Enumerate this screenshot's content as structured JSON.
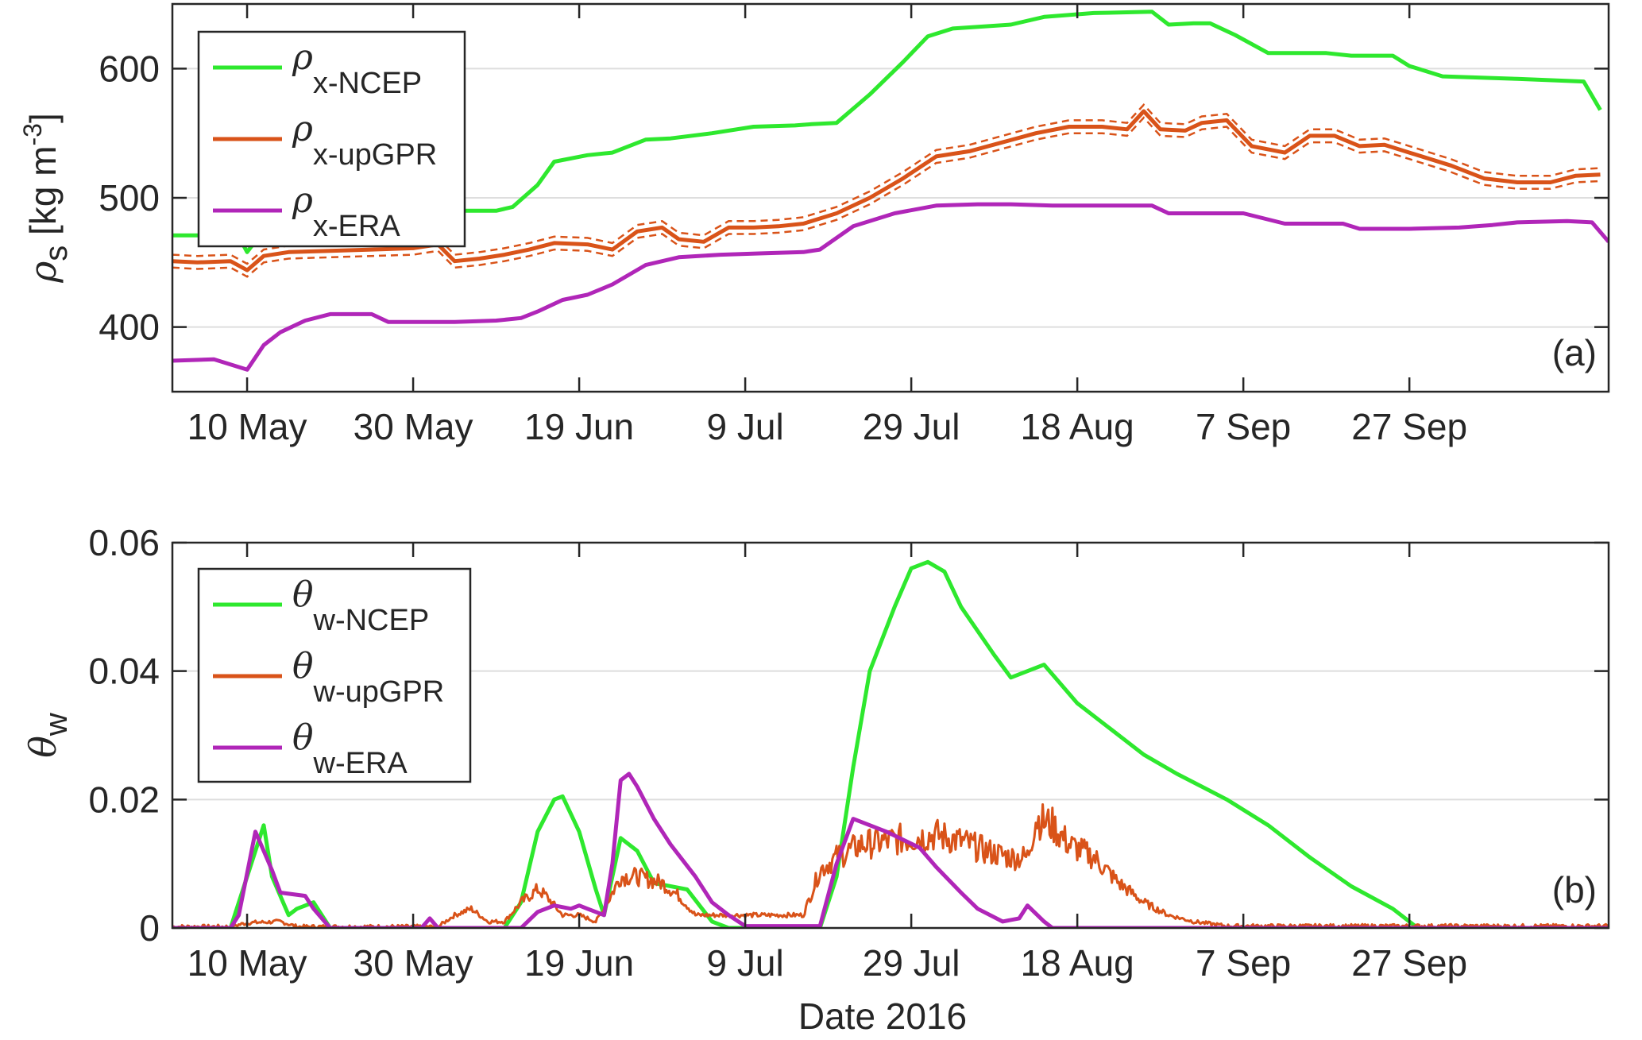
{
  "figure": {
    "xlabel": "Date 2016"
  },
  "chart_data": [
    {
      "type": "line",
      "panel": "(a)",
      "ylabel_symbol": "ρ",
      "ylabel_subscript": "s",
      "ylabel_units": "[kg m",
      "ylabel_exponent": "-3",
      "ylabel_close": "]",
      "xlim": [
        "2016-05-01",
        "2016-10-21"
      ],
      "ylim": [
        350,
        650
      ],
      "x_ticks": [
        "2016-05-10",
        "2016-05-30",
        "2016-06-19",
        "2016-07-09",
        "2016-07-29",
        "2016-08-18",
        "2016-09-07",
        "2016-09-27"
      ],
      "x_tick_labels": [
        "10 May",
        "30 May",
        "19 Jun",
        "9 Jul",
        "29 Jul",
        "18 Aug",
        "7 Sep",
        "27 Sep"
      ],
      "y_ticks": [
        400,
        500,
        600
      ],
      "y_tick_labels": [
        "400",
        "500",
        "600"
      ],
      "grid": "horizontal",
      "legend_position": "top-left",
      "series": [
        {
          "name": "ρx-NCEP",
          "symbol": "ρ",
          "subscript": "x-NCEP",
          "color": "#2ee82e",
          "x": [
            "2016-05-01",
            "2016-05-07",
            "2016-05-09",
            "2016-05-10",
            "2016-05-12",
            "2016-05-14",
            "2016-05-17",
            "2016-05-22",
            "2016-05-25",
            "2016-05-30",
            "2016-06-05",
            "2016-06-09",
            "2016-06-11",
            "2016-06-14",
            "2016-06-16",
            "2016-06-20",
            "2016-06-23",
            "2016-06-27",
            "2016-06-30",
            "2016-07-05",
            "2016-07-10",
            "2016-07-15",
            "2016-07-17",
            "2016-07-20",
            "2016-07-24",
            "2016-07-28",
            "2016-07-31",
            "2016-08-03",
            "2016-08-10",
            "2016-08-14",
            "2016-08-20",
            "2016-08-27",
            "2016-08-29",
            "2016-09-01",
            "2016-09-03",
            "2016-09-06",
            "2016-09-10",
            "2016-09-17",
            "2016-09-20",
            "2016-09-25",
            "2016-09-27",
            "2016-10-01",
            "2016-10-10",
            "2016-10-18",
            "2016-10-20"
          ],
          "values": [
            471,
            471,
            470,
            458,
            475,
            487,
            494,
            496,
            491,
            491,
            490,
            490,
            493,
            510,
            528,
            533,
            535,
            545,
            546,
            550,
            555,
            556,
            557,
            558,
            580,
            605,
            625,
            631,
            634,
            640,
            643,
            644,
            634,
            635,
            635,
            626,
            612,
            612,
            610,
            610,
            602,
            594,
            592,
            590,
            568
          ]
        },
        {
          "name": "ρx-upGPR",
          "symbol": "ρ",
          "subscript": "x-upGPR",
          "color": "#d95319",
          "band": 5,
          "x": [
            "2016-05-01",
            "2016-05-04",
            "2016-05-08",
            "2016-05-10",
            "2016-05-12",
            "2016-05-15",
            "2016-05-20",
            "2016-05-25",
            "2016-05-30",
            "2016-06-02",
            "2016-06-04",
            "2016-06-07",
            "2016-06-10",
            "2016-06-13",
            "2016-06-16",
            "2016-06-20",
            "2016-06-23",
            "2016-06-26",
            "2016-06-29",
            "2016-07-01",
            "2016-07-04",
            "2016-07-07",
            "2016-07-10",
            "2016-07-13",
            "2016-07-16",
            "2016-07-20",
            "2016-07-24",
            "2016-07-28",
            "2016-08-01",
            "2016-08-05",
            "2016-08-09",
            "2016-08-13",
            "2016-08-17",
            "2016-08-21",
            "2016-08-24",
            "2016-08-26",
            "2016-08-28",
            "2016-08-31",
            "2016-09-02",
            "2016-09-05",
            "2016-09-08",
            "2016-09-12",
            "2016-09-15",
            "2016-09-18",
            "2016-09-21",
            "2016-09-24",
            "2016-09-27",
            "2016-10-02",
            "2016-10-06",
            "2016-10-10",
            "2016-10-14",
            "2016-10-17",
            "2016-10-20"
          ],
          "values": [
            451,
            450,
            451,
            444,
            455,
            458,
            459,
            460,
            461,
            464,
            451,
            453,
            456,
            460,
            465,
            464,
            460,
            474,
            477,
            468,
            466,
            477,
            477,
            478,
            480,
            488,
            500,
            515,
            532,
            536,
            543,
            550,
            555,
            555,
            553,
            567,
            553,
            552,
            558,
            560,
            540,
            535,
            548,
            548,
            540,
            541,
            535,
            525,
            515,
            512,
            512,
            517,
            518
          ]
        },
        {
          "name": "ρx-ERA",
          "symbol": "ρ",
          "subscript": "x-ERA",
          "color": "#b026b8",
          "x": [
            "2016-05-01",
            "2016-05-06",
            "2016-05-10",
            "2016-05-12",
            "2016-05-14",
            "2016-05-17",
            "2016-05-20",
            "2016-05-25",
            "2016-05-27",
            "2016-05-30",
            "2016-06-04",
            "2016-06-09",
            "2016-06-12",
            "2016-06-14",
            "2016-06-17",
            "2016-06-20",
            "2016-06-23",
            "2016-06-27",
            "2016-07-01",
            "2016-07-06",
            "2016-07-11",
            "2016-07-16",
            "2016-07-18",
            "2016-07-22",
            "2016-07-27",
            "2016-08-01",
            "2016-08-06",
            "2016-08-10",
            "2016-08-15",
            "2016-08-20",
            "2016-08-27",
            "2016-08-29",
            "2016-09-05",
            "2016-09-07",
            "2016-09-12",
            "2016-09-19",
            "2016-09-21",
            "2016-09-27",
            "2016-10-03",
            "2016-10-07",
            "2016-10-10",
            "2016-10-16",
            "2016-10-19",
            "2016-10-21"
          ],
          "values": [
            374,
            375,
            367,
            386,
            396,
            405,
            410,
            410,
            404,
            404,
            404,
            405,
            407,
            412,
            421,
            425,
            433,
            448,
            454,
            456,
            457,
            458,
            460,
            478,
            488,
            494,
            495,
            495,
            494,
            494,
            494,
            488,
            488,
            488,
            480,
            480,
            476,
            476,
            477,
            479,
            481,
            482,
            481,
            466
          ]
        }
      ]
    },
    {
      "type": "line",
      "panel": "(b)",
      "ylabel_symbol": "θ",
      "ylabel_subscript": "w",
      "xlabel": "Date 2016",
      "xlim": [
        "2016-05-01",
        "2016-10-21"
      ],
      "ylim": [
        0,
        0.06
      ],
      "x_ticks": [
        "2016-05-10",
        "2016-05-30",
        "2016-06-19",
        "2016-07-09",
        "2016-07-29",
        "2016-08-18",
        "2016-09-07",
        "2016-09-27"
      ],
      "x_tick_labels": [
        "10 May",
        "30 May",
        "19 Jun",
        "9 Jul",
        "29 Jul",
        "18 Aug",
        "7 Sep",
        "27 Sep"
      ],
      "y_ticks": [
        0,
        0.02,
        0.04,
        0.06
      ],
      "y_tick_labels": [
        "0",
        "0.02",
        "0.04",
        "0.06"
      ],
      "grid": "horizontal",
      "legend_position": "top-left",
      "series": [
        {
          "name": "θw-NCEP",
          "symbol": "θ",
          "subscript": "w-NCEP",
          "color": "#2ee82e",
          "x": [
            "2016-05-01",
            "2016-05-08",
            "2016-05-10",
            "2016-05-12",
            "2016-05-13",
            "2016-05-15",
            "2016-05-16",
            "2016-05-18",
            "2016-05-20",
            "2016-06-10",
            "2016-06-12",
            "2016-06-14",
            "2016-06-16",
            "2016-06-17",
            "2016-06-19",
            "2016-06-21",
            "2016-06-22",
            "2016-06-24",
            "2016-06-26",
            "2016-06-28",
            "2016-07-02",
            "2016-07-05",
            "2016-07-07",
            "2016-07-18",
            "2016-07-20",
            "2016-07-22",
            "2016-07-24",
            "2016-07-27",
            "2016-07-29",
            "2016-07-31",
            "2016-08-02",
            "2016-08-04",
            "2016-08-08",
            "2016-08-10",
            "2016-08-12",
            "2016-08-14",
            "2016-08-18",
            "2016-08-22",
            "2016-08-26",
            "2016-08-30",
            "2016-09-05",
            "2016-09-10",
            "2016-09-15",
            "2016-09-20",
            "2016-09-25",
            "2016-09-28",
            "2016-10-21"
          ],
          "values": [
            0,
            0,
            0.008,
            0.016,
            0.008,
            0.002,
            0.003,
            0.004,
            0,
            0,
            0.004,
            0.015,
            0.02,
            0.0205,
            0.015,
            0.006,
            0.002,
            0.014,
            0.012,
            0.007,
            0.006,
            0.001,
            0,
            0,
            0.008,
            0.025,
            0.04,
            0.05,
            0.056,
            0.057,
            0.0555,
            0.05,
            0.0425,
            0.039,
            0.04,
            0.041,
            0.035,
            0.031,
            0.027,
            0.024,
            0.02,
            0.016,
            0.011,
            0.0065,
            0.003,
            0,
            0
          ]
        },
        {
          "name": "θw-upGPR",
          "symbol": "θ",
          "subscript": "w-upGPR",
          "color": "#d95319",
          "noise": true,
          "x": [
            "2016-05-01",
            "2016-05-08",
            "2016-05-10",
            "2016-05-14",
            "2016-05-16",
            "2016-06-02",
            "2016-06-04",
            "2016-06-06",
            "2016-06-08",
            "2016-06-10",
            "2016-06-12",
            "2016-06-14",
            "2016-06-15",
            "2016-06-17",
            "2016-06-19",
            "2016-06-21",
            "2016-06-22",
            "2016-06-24",
            "2016-06-26",
            "2016-06-29",
            "2016-07-01",
            "2016-07-03",
            "2016-07-07",
            "2016-07-11",
            "2016-07-16",
            "2016-07-18",
            "2016-07-20",
            "2016-07-23",
            "2016-07-26",
            "2016-07-29",
            "2016-08-01",
            "2016-08-04",
            "2016-08-07",
            "2016-08-10",
            "2016-08-12",
            "2016-08-13",
            "2016-08-15",
            "2016-08-17",
            "2016-08-20",
            "2016-08-23",
            "2016-08-26",
            "2016-08-29",
            "2016-09-01",
            "2016-09-05",
            "2016-10-21"
          ],
          "values": [
            0.0002,
            0.0002,
            0.0008,
            0.001,
            0.0002,
            0.0002,
            0.002,
            0.003,
            0.001,
            0.001,
            0.004,
            0.006,
            0.005,
            0.002,
            0.002,
            0.001,
            0.003,
            0.008,
            0.008,
            0.007,
            0.005,
            0.002,
            0.002,
            0.002,
            0.002,
            0.009,
            0.011,
            0.013,
            0.0135,
            0.014,
            0.0145,
            0.0135,
            0.012,
            0.011,
            0.011,
            0.017,
            0.016,
            0.013,
            0.011,
            0.007,
            0.004,
            0.002,
            0.001,
            0.0003,
            0.0003
          ]
        },
        {
          "name": "θw-ERA",
          "symbol": "θ",
          "subscript": "w-ERA",
          "color": "#b026b8",
          "x": [
            "2016-05-01",
            "2016-05-08",
            "2016-05-09",
            "2016-05-11",
            "2016-05-12",
            "2016-05-13",
            "2016-05-14",
            "2016-05-17",
            "2016-05-18",
            "2016-05-20",
            "2016-05-31",
            "2016-06-01",
            "2016-06-02",
            "2016-06-12",
            "2016-06-14",
            "2016-06-16",
            "2016-06-18",
            "2016-06-19",
            "2016-06-20",
            "2016-06-22",
            "2016-06-23",
            "2016-06-24",
            "2016-06-25",
            "2016-06-26",
            "2016-06-28",
            "2016-06-30",
            "2016-07-03",
            "2016-07-05",
            "2016-07-07",
            "2016-07-09",
            "2016-07-18",
            "2016-07-20",
            "2016-07-22",
            "2016-07-24",
            "2016-07-26",
            "2016-07-30",
            "2016-08-01",
            "2016-08-04",
            "2016-08-06",
            "2016-08-09",
            "2016-08-11",
            "2016-08-12",
            "2016-08-14",
            "2016-08-15",
            "2016-10-21"
          ],
          "values": [
            0,
            0,
            0.002,
            0.015,
            0.012,
            0.009,
            0.0055,
            0.005,
            0.003,
            0,
            0,
            0.0015,
            0,
            0,
            0.0025,
            0.0035,
            0.003,
            0.0035,
            0.003,
            0.002,
            0.01,
            0.023,
            0.024,
            0.022,
            0.017,
            0.013,
            0.008,
            0.004,
            0.002,
            0.0003,
            0.0003,
            0.01,
            0.017,
            0.016,
            0.015,
            0.0125,
            0.0095,
            0.0055,
            0.003,
            0.001,
            0.0015,
            0.0035,
            0.001,
            0,
            0
          ]
        }
      ]
    }
  ]
}
